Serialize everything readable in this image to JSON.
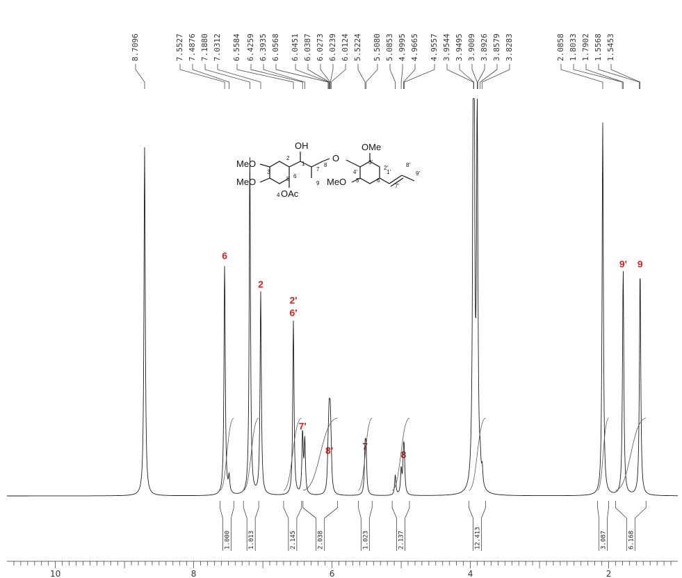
{
  "chart_data": {
    "type": "line",
    "title": "",
    "xlabel": "",
    "ylabel": "",
    "x_unit": "ppm",
    "xlim": [
      10.7,
      1.0
    ],
    "x_reversed": true,
    "axis_ticks": [
      "10",
      "8",
      "6",
      "4",
      "2"
    ],
    "peak_labels": [
      "8.7096",
      "7.5527",
      "7.4876",
      "7.1880",
      "7.0312",
      "6.5584",
      "6.4259",
      "6.3935",
      "6.0568",
      "6.0451",
      "6.0387",
      "6.0273",
      "6.0239",
      "6.0124",
      "5.5224",
      "5.5080",
      "5.0853",
      "4.9995",
      "4.9665",
      "4.9557",
      "3.9544",
      "3.9495",
      "3.9009",
      "3.8926",
      "3.8579",
      "3.8283",
      "2.0858",
      "1.8033",
      "1.7902",
      "1.5568",
      "1.5453"
    ],
    "peaks": [
      {
        "ppm": 8.7096,
        "height": 0.86
      },
      {
        "ppm": 7.5527,
        "height": 0.57
      },
      {
        "ppm": 7.4876,
        "height": 0.04
      },
      {
        "ppm": 7.188,
        "height": 0.84
      },
      {
        "ppm": 7.0312,
        "height": 0.5
      },
      {
        "ppm": 6.5584,
        "height": 0.43
      },
      {
        "ppm": 6.4259,
        "height": 0.15
      },
      {
        "ppm": 6.3935,
        "height": 0.13
      },
      {
        "ppm": 6.0568,
        "height": 0.07
      },
      {
        "ppm": 6.0451,
        "height": 0.08
      },
      {
        "ppm": 6.0387,
        "height": 0.09
      },
      {
        "ppm": 6.0273,
        "height": 0.08
      },
      {
        "ppm": 6.0239,
        "height": 0.07
      },
      {
        "ppm": 6.0124,
        "height": 0.06
      },
      {
        "ppm": 5.5224,
        "height": 0.1
      },
      {
        "ppm": 5.508,
        "height": 0.1
      },
      {
        "ppm": 5.0853,
        "height": 0.05
      },
      {
        "ppm": 4.9995,
        "height": 0.06
      },
      {
        "ppm": 4.9665,
        "height": 0.08
      },
      {
        "ppm": 4.9557,
        "height": 0.08
      },
      {
        "ppm": 3.9544,
        "height": 0.95
      },
      {
        "ppm": 3.9495,
        "height": 0.94
      },
      {
        "ppm": 3.9009,
        "height": 0.9
      },
      {
        "ppm": 3.8926,
        "height": 0.05
      },
      {
        "ppm": 3.8579,
        "height": 0.05
      },
      {
        "ppm": 3.8283,
        "height": 0.04
      },
      {
        "ppm": 2.0858,
        "height": 0.92
      },
      {
        "ppm": 1.8033,
        "height": 0.02
      },
      {
        "ppm": 1.7902,
        "height": 0.55
      },
      {
        "ppm": 1.5568,
        "height": 0.02
      },
      {
        "ppm": 1.5453,
        "height": 0.55
      }
    ],
    "integrations": [
      {
        "value": "1.000",
        "from": 7.62,
        "to": 7.42
      },
      {
        "value": "1.013",
        "from": 7.28,
        "to": 7.06
      },
      {
        "value": "2.145",
        "from": 6.7,
        "to": 6.44
      },
      {
        "value": "2.038",
        "from": 6.42,
        "to": 5.92
      },
      {
        "value": "1.023",
        "from": 5.62,
        "to": 5.42
      },
      {
        "value": "2.137",
        "from": 5.13,
        "to": 4.88
      },
      {
        "value": "12.413",
        "from": 4.02,
        "to": 3.78
      },
      {
        "value": "3.087",
        "from": 2.16,
        "to": 2.0
      },
      {
        "value": "6.168",
        "from": 1.9,
        "to": 1.46
      }
    ],
    "assignments": [
      {
        "label": "6",
        "ppm": 7.5527
      },
      {
        "label": "2",
        "ppm": 7.0312
      },
      {
        "label": "2'",
        "ppm": 6.5584,
        "label2": "6'"
      },
      {
        "label": "7'",
        "ppm": 6.4259
      },
      {
        "label": "8'",
        "ppm": 6.04
      },
      {
        "label": "7",
        "ppm": 5.5224
      },
      {
        "label": "8",
        "ppm": 4.9665
      },
      {
        "label": "9'",
        "ppm": 1.7902
      },
      {
        "label": "9",
        "ppm": 1.5453
      }
    ],
    "structure_labels": {
      "oh": "OH",
      "ome_top": "OMe",
      "meo_3": "MeO",
      "meo_4": "MeO",
      "meo_5p": "MeO",
      "oac": "OAc",
      "ether_o": "O",
      "numbers": [
        "3",
        "4",
        "5",
        "2",
        "1",
        "6",
        "7",
        "8",
        "9",
        "3'",
        "4'",
        "5'",
        "2'",
        "6'",
        "1'",
        "7'",
        "8'",
        "9'"
      ]
    },
    "colors": {
      "spectrum": "#1a1a1a",
      "assignment": "#d8231f"
    }
  }
}
